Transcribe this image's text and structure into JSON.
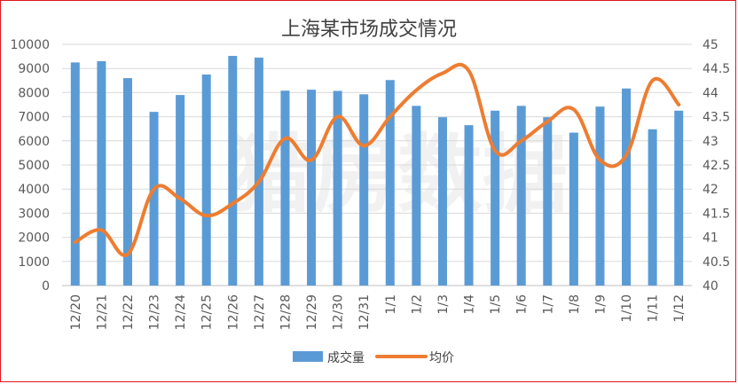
{
  "chart_data": {
    "type": "bar+line",
    "title": "上海某市场成交情况",
    "categories": [
      "12/20",
      "12/21",
      "12/22",
      "12/23",
      "12/24",
      "12/25",
      "12/26",
      "12/27",
      "12/28",
      "12/29",
      "12/30",
      "12/31",
      "1/1",
      "1/2",
      "1/3",
      "1/4",
      "1/5",
      "1/6",
      "1/7",
      "1/8",
      "1/9",
      "1/10",
      "1/11",
      "1/12"
    ],
    "series": [
      {
        "name": "成交量",
        "type": "bar",
        "axis": "left",
        "color": "#5b9bd5",
        "values": [
          9250,
          9300,
          8600,
          7200,
          7900,
          8750,
          9520,
          9450,
          8080,
          8120,
          8070,
          7930,
          8520,
          7450,
          6980,
          6650,
          7250,
          7450,
          6980,
          6340,
          7420,
          8170,
          6480,
          7250
        ]
      },
      {
        "name": "均价",
        "type": "line",
        "axis": "right",
        "color": "#ed7d31",
        "values": [
          40.9,
          41.15,
          40.65,
          42.0,
          41.8,
          41.45,
          41.7,
          42.15,
          43.05,
          42.6,
          43.5,
          42.9,
          43.5,
          44.05,
          44.4,
          44.45,
          42.8,
          43.0,
          43.4,
          43.65,
          42.6,
          42.7,
          44.25,
          43.75
        ]
      }
    ],
    "y_left": {
      "min": 0,
      "max": 10000,
      "step": 1000,
      "ticks": [
        "0",
        "1000",
        "2000",
        "3000",
        "4000",
        "5000",
        "6000",
        "7000",
        "8000",
        "9000",
        "10000"
      ]
    },
    "y_right": {
      "min": 40,
      "max": 45,
      "step": 0.5,
      "ticks": [
        "40",
        "40.5",
        "41",
        "41.5",
        "42",
        "42.5",
        "43",
        "43.5",
        "44",
        "44.5",
        "45"
      ]
    },
    "grid": true,
    "legend": "bottom",
    "watermark": "猎房数据"
  }
}
